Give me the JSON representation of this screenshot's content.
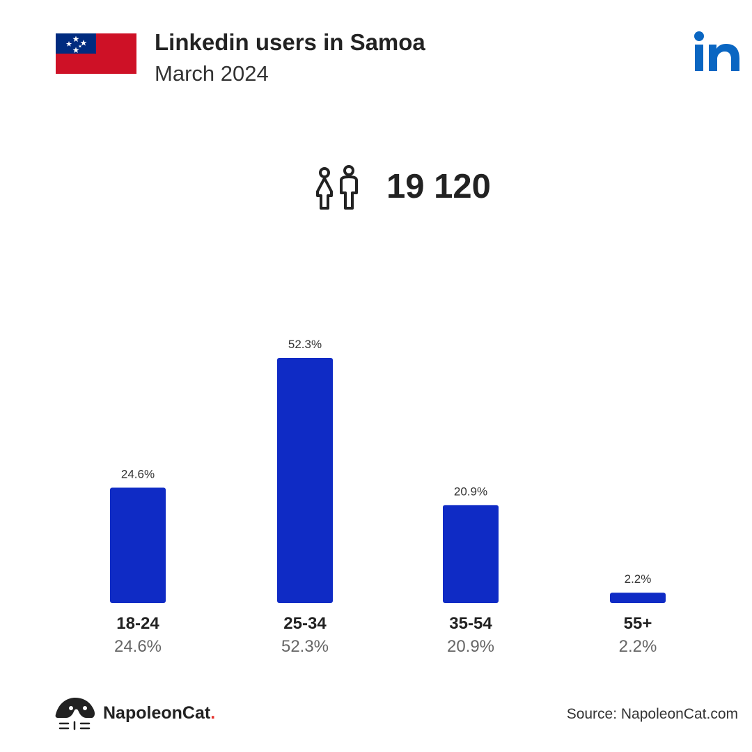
{
  "header": {
    "title": "Linkedin users in Samoa",
    "subtitle": "March 2024"
  },
  "total": {
    "value": "19 120",
    "icon": "people-icon"
  },
  "icons": {
    "flag": "samoa-flag-icon",
    "brand": "linkedin-logo-icon",
    "footer": "napoleoncat-logo-icon"
  },
  "colors": {
    "bar": "#0f2bc5",
    "linkedin": "#0a66c2",
    "flag_red": "#ce1126",
    "flag_blue": "#002b7f"
  },
  "chart_data": {
    "type": "bar",
    "categories": [
      "18-24",
      "25-34",
      "35-54",
      "55+"
    ],
    "values": [
      24.6,
      52.3,
      20.9,
      2.2
    ],
    "value_labels": [
      "24.6%",
      "52.3%",
      "20.9%",
      "2.2%"
    ],
    "ylim": [
      0,
      52.3
    ],
    "title": "",
    "xlabel": "",
    "ylabel": "",
    "grid": false
  },
  "footer": {
    "brand_name": "NapoleonCat",
    "brand_dot": ".",
    "source": "Source: NapoleonCat.com"
  }
}
